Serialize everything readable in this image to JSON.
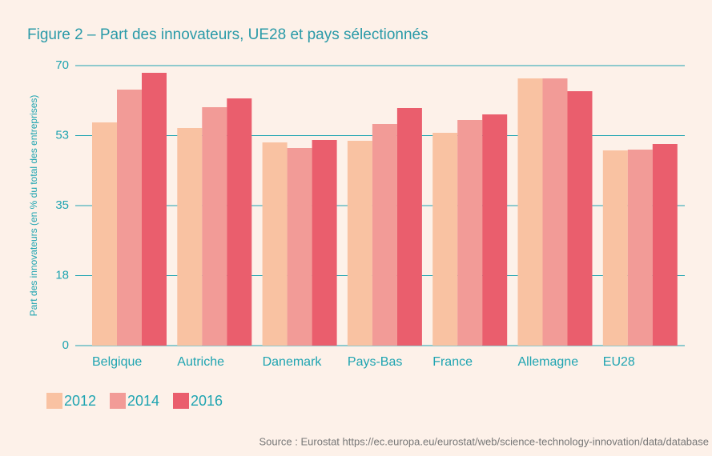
{
  "chart_data": {
    "type": "bar",
    "title": "Figure 2 – Part des innovateurs, UE28 et pays sélectionnés",
    "y_label": "Part des innovateurs (en % du total des entreprises)",
    "source": "Source : Eurostat https://ec.europa.eu/eurostat/web/science-technology-innovation/data/database",
    "categories": [
      "Belgique",
      "Autriche",
      "Danemark",
      "Pays-Bas",
      "France",
      "Allemagne",
      "EU28"
    ],
    "series": [
      {
        "name": "2012",
        "color": "#f9c2a2",
        "values": [
          55.8,
          54.4,
          50.8,
          51.2,
          53.2,
          66.8,
          48.8
        ]
      },
      {
        "name": "2014",
        "color": "#f29b97",
        "values": [
          64,
          59.6,
          49.4,
          55.4,
          56.4,
          66.8,
          49
        ]
      },
      {
        "name": "2016",
        "color": "#ea5e6d",
        "values": [
          68.2,
          61.8,
          51.4,
          59.4,
          57.8,
          63.6,
          50.4
        ]
      }
    ],
    "ylim": [
      0,
      70
    ],
    "yticks": [
      0,
      {
        "value": 17.5,
        "label": "18"
      },
      35,
      {
        "value": 52.5,
        "label": "53"
      },
      70
    ],
    "grid": true
  }
}
